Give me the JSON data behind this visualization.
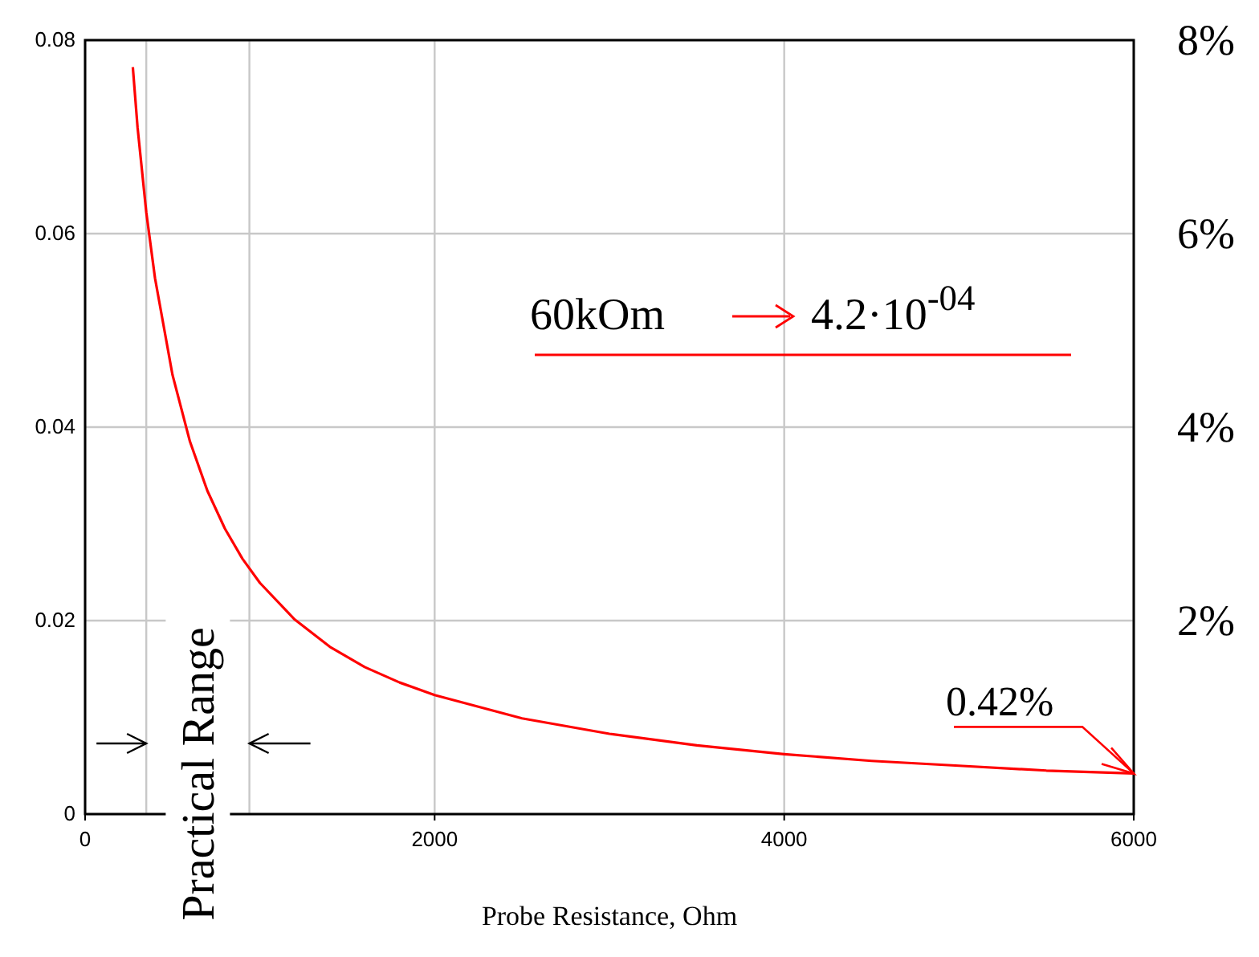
{
  "chart_data": {
    "type": "line",
    "xlabel": "Probe Resistance, Ohm",
    "x": [
      273,
      300,
      350,
      400,
      500,
      600,
      700,
      800,
      900,
      1000,
      1200,
      1400,
      1600,
      1800,
      2000,
      2500,
      3000,
      3500,
      4000,
      4500,
      5000,
      5500,
      6000
    ],
    "series": [
      {
        "color": "#ff0000",
        "values": [
          0.0772,
          0.071,
          0.0622,
          0.0554,
          0.0454,
          0.0385,
          0.0334,
          0.0295,
          0.0264,
          0.0239,
          0.0201,
          0.0173,
          0.0152,
          0.0136,
          0.0123,
          0.0099,
          0.0083,
          0.0071,
          0.0062,
          0.0055,
          0.005,
          0.0045,
          0.0042
        ]
      }
    ],
    "xlim": [
      0,
      6000
    ],
    "xticks": [
      0,
      2000,
      4000,
      6000
    ],
    "ylim": [
      0,
      0.08
    ],
    "yticks": [
      0,
      0.02,
      0.04,
      0.06,
      0.08
    ],
    "y2lim": [
      0,
      8
    ],
    "y2ticks": [
      {
        "value": 2,
        "label": "2%"
      },
      {
        "value": 4,
        "label": "4%"
      },
      {
        "value": 6,
        "label": "6%"
      },
      {
        "value": 8,
        "label": "8%"
      }
    ],
    "grid": true,
    "marker": "none",
    "line_style": "solid",
    "ref_lines": [
      {
        "axis": "x",
        "value": 350,
        "color": "#c8c8c8"
      },
      {
        "axis": "x",
        "value": 940,
        "color": "#c8c8c8"
      }
    ],
    "annotations": [
      "60kOm",
      "4.2·10$^{-04}$",
      {
        "text": "0.42%",
        "x": 6000,
        "y": 0.0042
      },
      "Practical Range"
    ]
  }
}
